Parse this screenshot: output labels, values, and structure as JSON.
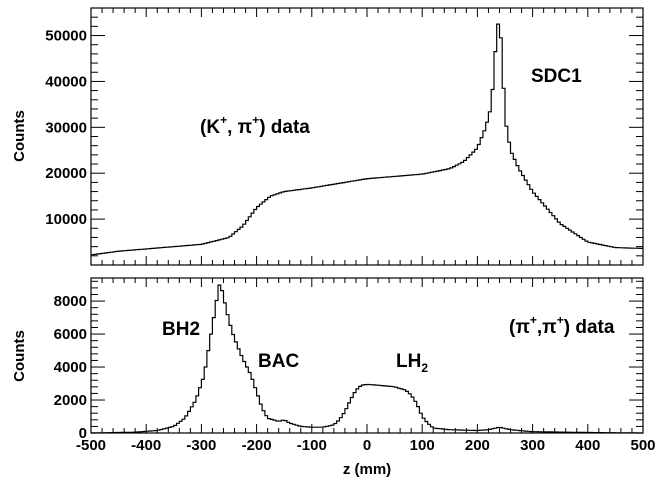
{
  "chart_data": [
    {
      "type": "histogram",
      "ylabel": "Counts",
      "xlim": [
        -500,
        500
      ],
      "ylim": [
        0,
        56000
      ],
      "yticks": [
        10000,
        20000,
        30000,
        40000,
        50000
      ],
      "grid": false,
      "annotations": [
        {
          "text": "SDC1"
        },
        {
          "parts": [
            "(K",
            "+",
            ", π",
            "+",
            ") data"
          ]
        }
      ],
      "series": [
        {
          "x": [
            -500,
            -450,
            -400,
            -350,
            -300,
            -250,
            -225,
            -200,
            -175,
            -150,
            -100,
            -50,
            0,
            50,
            100,
            150,
            175,
            200,
            215,
            225,
            230,
            235,
            240,
            245,
            250,
            260,
            275,
            300,
            350,
            400,
            450,
            500
          ],
          "y": [
            2200,
            3000,
            3500,
            4000,
            4500,
            6000,
            8500,
            12500,
            15000,
            16000,
            16800,
            17800,
            18800,
            19300,
            19800,
            21000,
            22500,
            25500,
            30000,
            34500,
            42000,
            51000,
            54000,
            45000,
            32000,
            25000,
            21000,
            16000,
            9000,
            5000,
            3800,
            3600
          ]
        }
      ]
    },
    {
      "type": "histogram",
      "xlabel": "z (mm)",
      "ylabel": "Counts",
      "xlim": [
        -500,
        500
      ],
      "ylim": [
        0,
        9400
      ],
      "xticks": [
        -500,
        -400,
        -300,
        -200,
        -100,
        0,
        100,
        200,
        300,
        400,
        500
      ],
      "xticklabels": [
        "-500",
        "-400",
        "-300",
        "-200",
        "-100",
        "0",
        "100",
        "200",
        "300",
        "400",
        "500"
      ],
      "yticks": [
        0,
        2000,
        4000,
        6000,
        8000
      ],
      "grid": false,
      "annotations": [
        {
          "text": "BH2"
        },
        {
          "text": "BAC"
        },
        {
          "parts": [
            "LH",
            "2"
          ]
        },
        {
          "parts": [
            "(π",
            "+",
            ",π",
            "+",
            ") data"
          ]
        }
      ],
      "series": [
        {
          "x": [
            -500,
            -420,
            -380,
            -350,
            -330,
            -310,
            -295,
            -285,
            -275,
            -268,
            -262,
            -255,
            -245,
            -235,
            -225,
            -210,
            -200,
            -190,
            -180,
            -160,
            -150,
            -140,
            -120,
            -100,
            -80,
            -60,
            -50,
            -40,
            -30,
            -20,
            -10,
            0,
            20,
            50,
            70,
            80,
            90,
            100,
            110,
            120,
            150,
            200,
            220,
            240,
            260,
            300,
            400,
            500
          ],
          "y": [
            0,
            50,
            150,
            400,
            900,
            2000,
            3500,
            5500,
            7500,
            9000,
            8600,
            7500,
            6200,
            5300,
            4500,
            3500,
            2500,
            1500,
            900,
            700,
            800,
            600,
            400,
            350,
            350,
            500,
            800,
            1300,
            2000,
            2600,
            2900,
            2950,
            2900,
            2800,
            2600,
            2300,
            1800,
            1000,
            600,
            300,
            200,
            150,
            200,
            350,
            200,
            80,
            30,
            0
          ]
        }
      ]
    }
  ]
}
